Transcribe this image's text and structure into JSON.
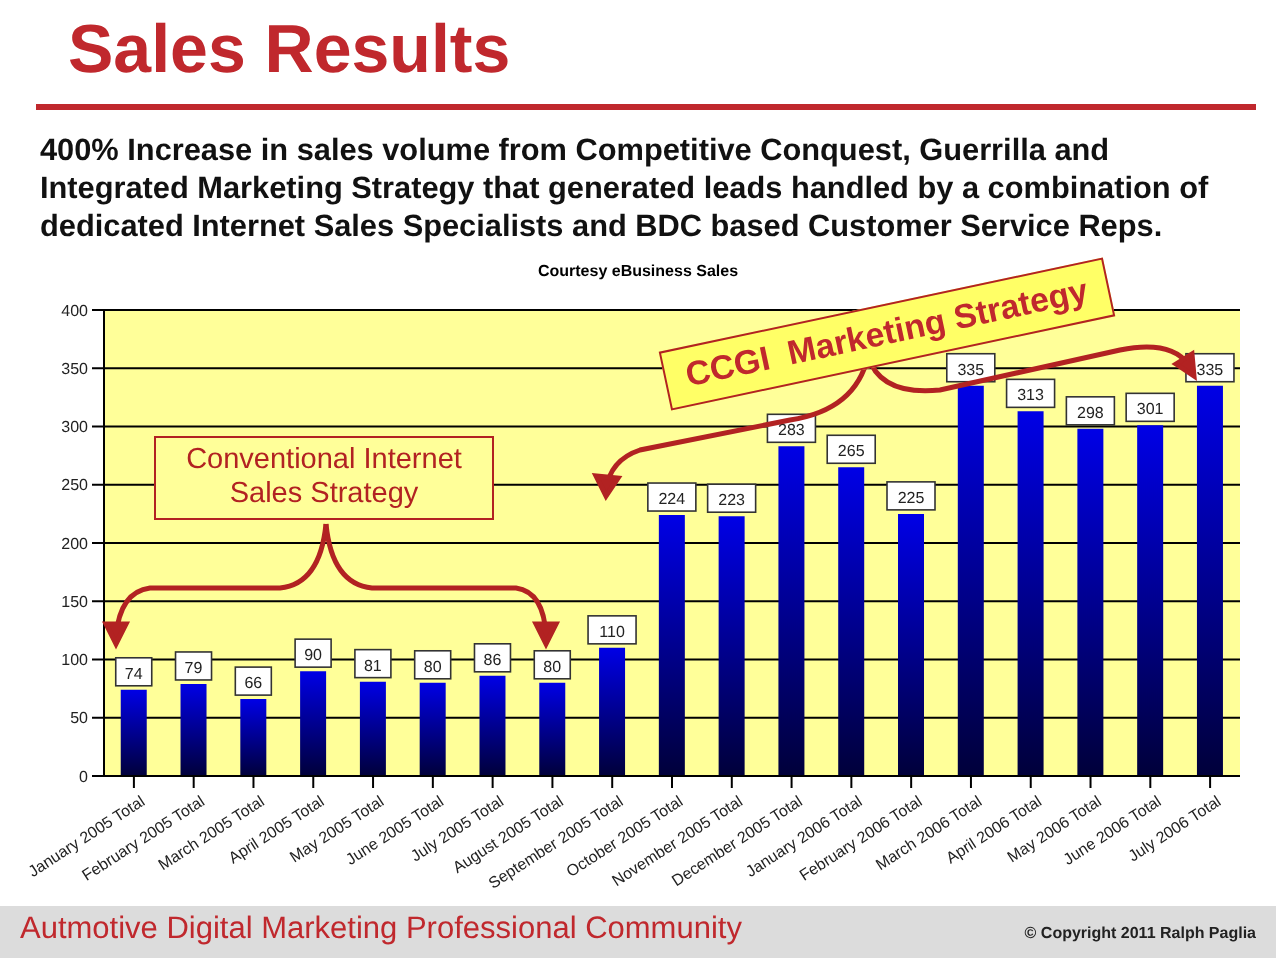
{
  "chart_data": {
    "type": "bar",
    "title": "Sales Results",
    "subtitle": "400% Increase in sales volume from Competitive Conquest, Guerrilla and Integrated Marketing Strategy that generated leads handled by a combination of dedicated Internet Sales Specialists and BDC based Customer Service Reps.",
    "annotations": [
      "Courtesy eBusiness Sales",
      "Conventional Internet Sales Strategy",
      "CCGI  Marketing Strategy",
      "Autmotive Digital Marketing Professional Community",
      "© Copyright 2011 Ralph Paglia"
    ],
    "categories": [
      "January 2005 Total",
      "February 2005 Total",
      "March 2005 Total",
      "April 2005 Total",
      "May 2005 Total",
      "June 2005 Total",
      "July 2005 Total",
      "August 2005 Total",
      "September 2005 Total",
      "October 2005 Total",
      "November 2005 Total",
      "December 2005 Total",
      "January 2006 Total",
      "February 2006 Total",
      "March 2006 Total",
      "April 2006 Total",
      "May 2006 Total",
      "June 2006 Total",
      "July 2006 Total"
    ],
    "values": [
      74,
      79,
      66,
      90,
      81,
      80,
      86,
      80,
      110,
      224,
      223,
      283,
      265,
      225,
      335,
      313,
      298,
      301,
      335
    ],
    "color": "#0000e6",
    "ylim": [
      0,
      400
    ],
    "yticks": [
      0,
      50,
      100,
      150,
      200,
      250,
      300,
      350,
      400
    ],
    "grid": "y",
    "data_labels": true,
    "legend": false
  }
}
